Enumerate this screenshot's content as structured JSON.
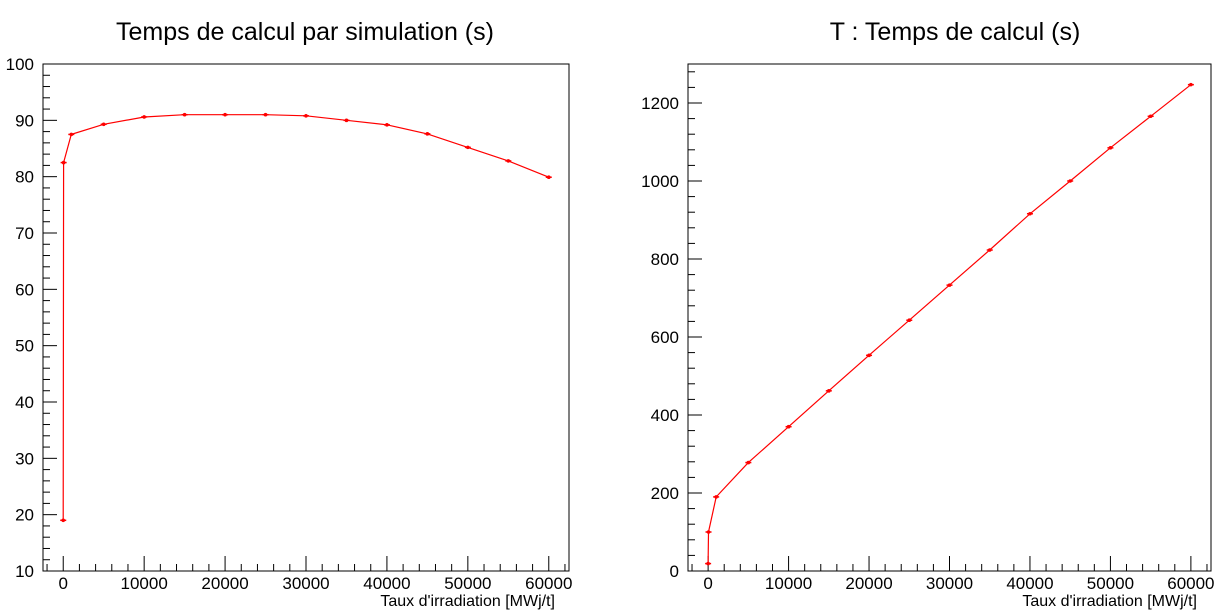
{
  "chart_data": [
    {
      "type": "line",
      "title": "Temps de calcul par simulation (s)",
      "xlabel": "Taux d'irradiation [MWj/t]",
      "ylabel": "",
      "xlim": [
        -2500,
        62500
      ],
      "ylim": [
        10,
        100
      ],
      "xticks": [
        0,
        10000,
        20000,
        30000,
        40000,
        50000,
        60000
      ],
      "xtick_labels": [
        "0",
        "10000",
        "20000",
        "30000",
        "40000",
        "50000",
        "60000"
      ],
      "yticks": [
        10,
        20,
        30,
        40,
        50,
        60,
        70,
        80,
        90,
        100
      ],
      "ytick_labels": [
        "10",
        "20",
        "30",
        "40",
        "50",
        "60",
        "70",
        "80",
        "90",
        "100"
      ],
      "grid": false,
      "color": "#ff0000",
      "x": [
        0,
        50,
        1000,
        5000,
        10000,
        15000,
        20000,
        25000,
        30000,
        35000,
        40000,
        45000,
        50000,
        55000,
        60000
      ],
      "y": [
        19,
        82.5,
        87.5,
        89.3,
        90.6,
        91.0,
        91.0,
        91.0,
        90.8,
        90.0,
        89.2,
        87.6,
        85.2,
        82.8,
        79.9
      ]
    },
    {
      "type": "line",
      "title": "T : Temps de calcul (s)",
      "xlabel": "Taux d'irradiation [MWj/t]",
      "ylabel": "",
      "xlim": [
        -2500,
        62500
      ],
      "ylim": [
        0,
        1300
      ],
      "xticks": [
        0,
        10000,
        20000,
        30000,
        40000,
        50000,
        60000
      ],
      "xtick_labels": [
        "0",
        "10000",
        "20000",
        "30000",
        "40000",
        "50000",
        "60000"
      ],
      "yticks": [
        0,
        200,
        400,
        600,
        800,
        1000,
        1200
      ],
      "ytick_labels": [
        "0",
        "200",
        "400",
        "600",
        "800",
        "1000",
        "1200"
      ],
      "grid": false,
      "color": "#ff0000",
      "x": [
        0,
        50,
        1000,
        5000,
        10000,
        15000,
        20000,
        25000,
        30000,
        35000,
        40000,
        45000,
        50000,
        55000,
        60000
      ],
      "y": [
        19,
        100,
        190,
        278,
        370,
        462,
        553,
        643,
        733,
        823,
        916,
        1000,
        1085,
        1166,
        1247
      ]
    }
  ]
}
